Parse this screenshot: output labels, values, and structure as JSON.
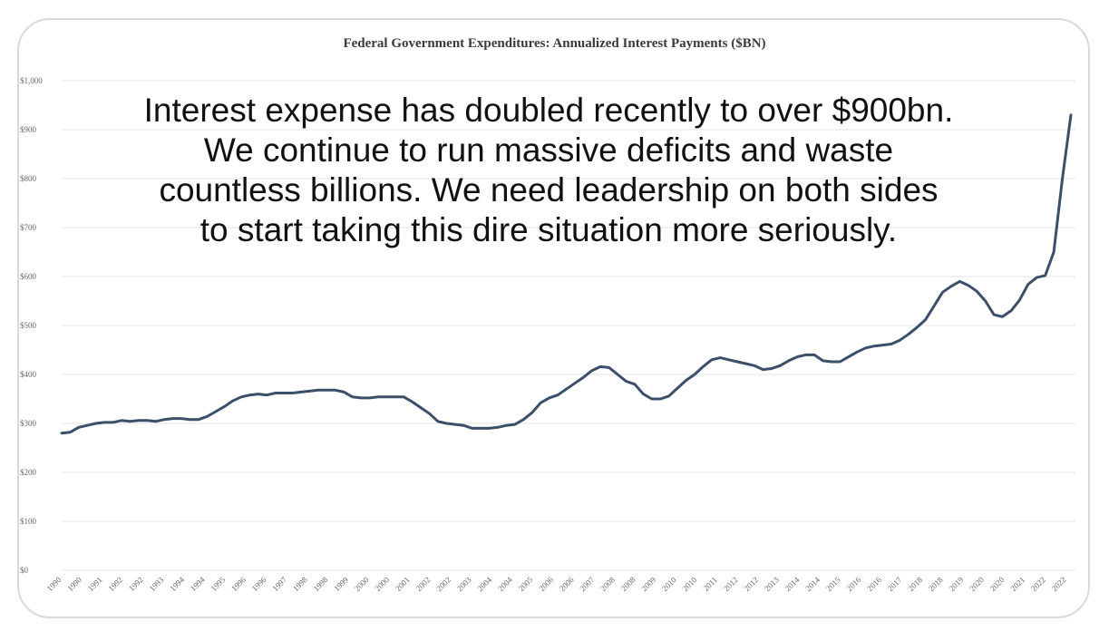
{
  "chart_data": {
    "type": "line",
    "title": "Federal Government Expenditures: Annualized Interest Payments ($BN)",
    "xlabel": "",
    "ylabel": "",
    "ylim": [
      0,
      1000
    ],
    "yticks": [
      "$0",
      "$100",
      "$200",
      "$300",
      "$400",
      "$500",
      "$600",
      "$700",
      "$800",
      "$900",
      "$1,000"
    ],
    "xticks": [
      "1990",
      "1990",
      "1991",
      "1992",
      "1992",
      "1993",
      "1994",
      "1994",
      "1995",
      "1996",
      "1996",
      "1997",
      "1998",
      "1998",
      "1999",
      "2000",
      "2000",
      "2001",
      "2002",
      "2002",
      "2003",
      "2004",
      "2004",
      "2005",
      "2006",
      "2006",
      "2007",
      "2008",
      "2008",
      "2009",
      "2010",
      "2010",
      "2011",
      "2012",
      "2012",
      "2013",
      "2014",
      "2014",
      "2015",
      "2016",
      "2016",
      "2017",
      "2018",
      "2018",
      "2019",
      "2020",
      "2020",
      "2021",
      "2022",
      "2022"
    ],
    "grid": true,
    "legend": "none",
    "line_color": "#3b4f6b",
    "series": [
      {
        "values": [
          280,
          282,
          292,
          296,
          300,
          302,
          302,
          306,
          304,
          306,
          306,
          304,
          308,
          310,
          310,
          308,
          308,
          314,
          324,
          334,
          346,
          354,
          358,
          360,
          358,
          362,
          362,
          362,
          364,
          366,
          368,
          368,
          368,
          364,
          354,
          352,
          352,
          354,
          354,
          354,
          354,
          344,
          332,
          320,
          304,
          300,
          298,
          296,
          290,
          290,
          290,
          292,
          296,
          298,
          308,
          322,
          342,
          352,
          358,
          370,
          382,
          394,
          408,
          416,
          414,
          400,
          386,
          380,
          360,
          350,
          350,
          356,
          372,
          388,
          400,
          416,
          430,
          434,
          430,
          426,
          422,
          418,
          410,
          412,
          418,
          428,
          436,
          440,
          440,
          428,
          426,
          426,
          436,
          446,
          454,
          458,
          460,
          462,
          470,
          482,
          496,
          512,
          540,
          568,
          580,
          590,
          582,
          570,
          550,
          522,
          518,
          530,
          552,
          584,
          598,
          602,
          650,
          800,
          930
        ]
      }
    ],
    "annotation_lines": [
      "Interest expense has doubled recently to over $900bn.",
      "We continue to run massive deficits and waste",
      "countless billions. We need leadership on both sides",
      "to start taking this dire situation more seriously."
    ]
  }
}
